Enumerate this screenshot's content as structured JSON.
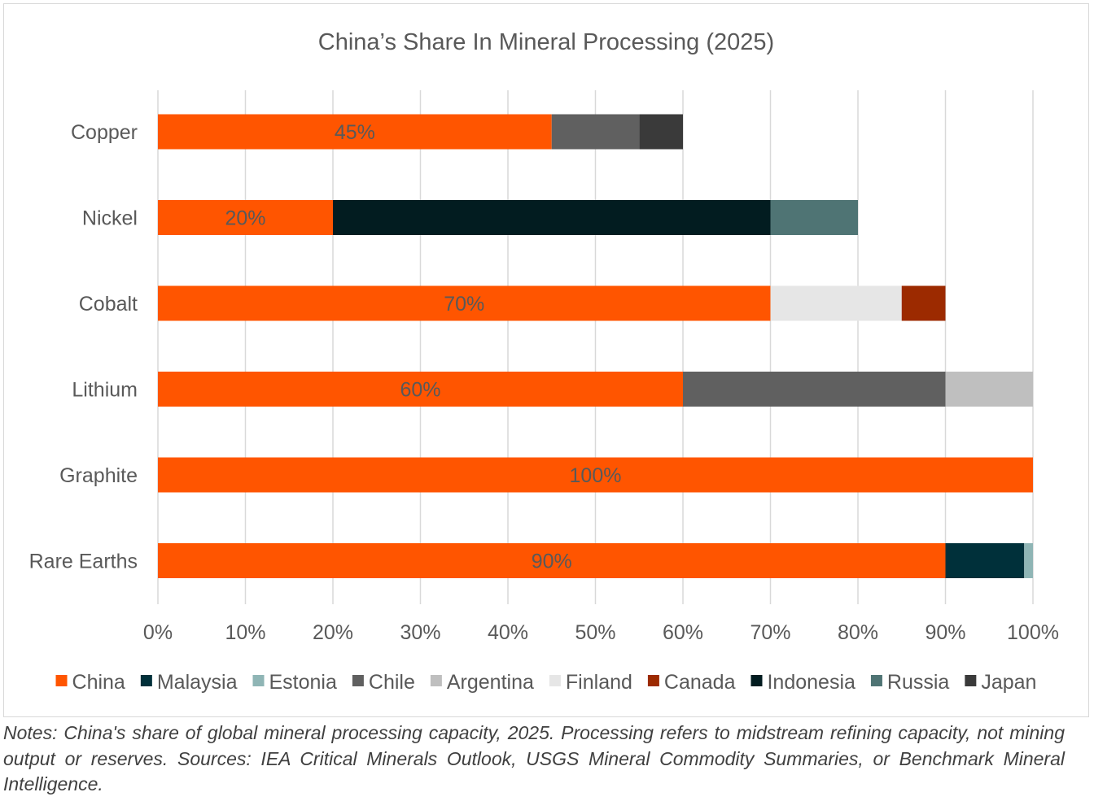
{
  "chart_data": {
    "type": "bar",
    "orientation": "horizontal",
    "stacked": true,
    "title": "China’s Share In Mineral Processing (2025)",
    "xlim": [
      0,
      100
    ],
    "x_ticks": [
      "0%",
      "10%",
      "20%",
      "30%",
      "40%",
      "50%",
      "60%",
      "70%",
      "80%",
      "90%",
      "100%"
    ],
    "grid": "vertical",
    "legend_position": "bottom",
    "categories": [
      "Copper",
      "Nickel",
      "Cobalt",
      "Lithium",
      "Graphite",
      "Rare Earths"
    ],
    "series": [
      {
        "name": "China",
        "color": "#ff5500",
        "values": [
          45,
          20,
          70,
          60,
          100,
          90
        ],
        "labels": [
          "45%",
          "20%",
          "70%",
          "60%",
          "100%",
          "90%"
        ]
      },
      {
        "name": "Malaysia",
        "color": "#00303a",
        "values": [
          0,
          0,
          0,
          0,
          0,
          9
        ]
      },
      {
        "name": "Estonia",
        "color": "#8fb5b5",
        "values": [
          0,
          0,
          0,
          0,
          0,
          1
        ]
      },
      {
        "name": "Chile",
        "color": "#606060",
        "values": [
          10,
          0,
          0,
          30,
          0,
          0
        ]
      },
      {
        "name": "Argentina",
        "color": "#bfbfbf",
        "values": [
          0,
          0,
          0,
          10,
          0,
          0
        ]
      },
      {
        "name": "Finland",
        "color": "#e6e6e6",
        "values": [
          0,
          0,
          15,
          0,
          0,
          0
        ]
      },
      {
        "name": "Canada",
        "color": "#9c2a00",
        "values": [
          0,
          0,
          5,
          0,
          0,
          0
        ]
      },
      {
        "name": "Indonesia",
        "color": "#021c20",
        "values": [
          0,
          50,
          0,
          0,
          0,
          0
        ]
      },
      {
        "name": "Russia",
        "color": "#4f7474",
        "values": [
          0,
          10,
          0,
          0,
          0,
          0
        ]
      },
      {
        "name": "Japan",
        "color": "#3a3a3a",
        "values": [
          5,
          0,
          0,
          0,
          0,
          0
        ]
      }
    ]
  },
  "notes": {
    "label": "Notes:",
    "text": " China's share of global mineral processing capacity, 2025. Processing refers to midstream refining capacity, not mining output or reserves. Sources: IEA Critical Minerals Outlook, USGS Mineral Commodity Summaries, or Benchmark Mineral Intelligence."
  }
}
